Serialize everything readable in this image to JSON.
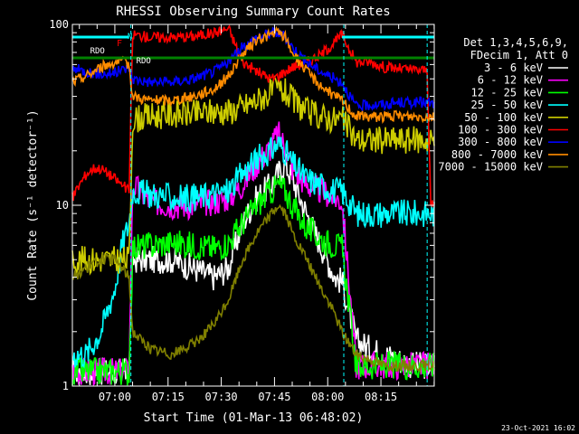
{
  "chart_data": {
    "type": "line",
    "title": "RHESSI Observing Summary Count Rates",
    "xlabel": "Start Time (01-Mar-13 06:48:02)",
    "ylabel": "Count Rate (s⁻¹ detector⁻¹)",
    "yscale": "log",
    "ylim": [
      1,
      100
    ],
    "xlim_minutes_after_start": [
      0,
      102
    ],
    "x_tick_labels": [
      "07:00",
      "07:15",
      "07:30",
      "07:45",
      "08:00",
      "08:15"
    ],
    "x_tick_minutes_after_start": [
      11.97,
      26.97,
      41.97,
      56.97,
      71.97,
      86.97
    ],
    "y_tick_labels": [
      "1",
      "10",
      "100"
    ],
    "y_tick_values": [
      1,
      10,
      100
    ],
    "grid": false,
    "legend_position": "right",
    "legend_header": [
      "Det 1,3,4,5,6,9,",
      "FDecim 1, Att 0"
    ],
    "footer_date": "23-Oct-2021 16:02",
    "flags": {
      "N": {
        "label": "N",
        "color": "#00ffff",
        "segments": [
          [
            0,
            16
          ],
          [
            76,
            102
          ]
        ]
      },
      "F": {
        "label": "F",
        "color": "#ff0000"
      },
      "RDO1": {
        "label": "RDO",
        "color": "#ffffff"
      },
      "RDO2": {
        "label": "RDO",
        "color": "#ffffff"
      },
      "SAA_line": {
        "color": "#008000",
        "segments": [
          [
            0,
            102
          ]
        ]
      }
    },
    "night_intervals_minutes": [
      [
        0,
        16
      ],
      [
        77,
        102
      ]
    ],
    "dashed_markers_minutes": [
      16.5,
      76.5,
      100
    ],
    "series": [
      {
        "name": "3 - 6 keV",
        "color": "#ffffff",
        "x": [
          0,
          4,
          8,
          12,
          14,
          16,
          17,
          22,
          28,
          34,
          40,
          44,
          48,
          52,
          56,
          58,
          60,
          62,
          66,
          70,
          74,
          76,
          80,
          84,
          88,
          92,
          96,
          100,
          102
        ],
        "y": [
          1.2,
          1.2,
          1.2,
          1.2,
          1.2,
          1.2,
          5.0,
          5.0,
          5.0,
          4.5,
          4.0,
          4.5,
          8,
          11,
          13,
          15,
          17,
          14,
          9,
          6,
          4,
          3.8,
          1.8,
          1.6,
          1.5,
          1.4,
          1.3,
          1.3,
          1.3
        ]
      },
      {
        "name": "6 - 12 keV",
        "color": "#ff00ff",
        "x": [
          0,
          4,
          8,
          12,
          14,
          16,
          17,
          22,
          28,
          34,
          40,
          44,
          48,
          52,
          56,
          58,
          60,
          62,
          66,
          70,
          74,
          76,
          80,
          84,
          88,
          92,
          96,
          100,
          102
        ],
        "y": [
          1.2,
          1.2,
          1.2,
          1.2,
          1.2,
          1.2,
          13.0,
          10.5,
          10.0,
          10.0,
          10.5,
          11.0,
          13,
          17,
          21,
          25,
          21,
          16,
          13,
          12,
          11,
          10.5,
          1.3,
          1.3,
          1.3,
          1.3,
          1.3,
          1.3,
          1.3
        ]
      },
      {
        "name": "12 - 25 keV",
        "color": "#00ff00",
        "x": [
          0,
          4,
          8,
          12,
          14,
          16,
          17,
          22,
          28,
          34,
          40,
          44,
          48,
          52,
          56,
          58,
          60,
          62,
          66,
          70,
          74,
          76,
          80,
          84,
          88,
          92,
          96,
          100,
          102
        ],
        "y": [
          1.2,
          1.2,
          1.2,
          1.2,
          1.2,
          1.2,
          5.8,
          6.0,
          6.2,
          6.0,
          5.8,
          6.2,
          8,
          10,
          12,
          13,
          12,
          10,
          7.5,
          6.5,
          6.0,
          5.8,
          1.3,
          1.3,
          1.3,
          1.3,
          1.3,
          1.3,
          1.3
        ]
      },
      {
        "name": "25 - 50 keV",
        "color": "#00ffff",
        "x": [
          0,
          4,
          8,
          12,
          14,
          16,
          17,
          22,
          28,
          34,
          40,
          44,
          48,
          52,
          56,
          58,
          60,
          62,
          66,
          70,
          74,
          76,
          80,
          84,
          88,
          92,
          96,
          100,
          102
        ],
        "y": [
          1.5,
          1.5,
          2.0,
          3.5,
          6.0,
          8.0,
          12.0,
          11.5,
          11.0,
          11.0,
          11.5,
          12.0,
          15,
          18,
          20,
          22,
          20,
          17,
          14,
          13,
          12,
          12,
          9,
          9,
          9,
          9,
          9,
          9,
          9
        ]
      },
      {
        "name": "50 - 100 keV",
        "color": "#cccc00",
        "x": [
          0,
          4,
          8,
          12,
          14,
          16,
          17,
          22,
          28,
          34,
          40,
          44,
          48,
          52,
          56,
          58,
          60,
          62,
          66,
          70,
          74,
          76,
          80,
          84,
          88,
          92,
          96,
          100,
          102
        ],
        "y": [
          5.0,
          5.0,
          5.0,
          5.0,
          5.0,
          5.0,
          30,
          31,
          32,
          32,
          33,
          33,
          35,
          38,
          42,
          44,
          42,
          38,
          33,
          31,
          30,
          30,
          23,
          23,
          23,
          23,
          23,
          23,
          23
        ]
      },
      {
        "name": "100 - 300 keV",
        "color": "#ff0000",
        "x": [
          0,
          2,
          4,
          6,
          8,
          10,
          12,
          14,
          16,
          17,
          22,
          28,
          34,
          40,
          44,
          48,
          52,
          56,
          58,
          60,
          62,
          66,
          70,
          74,
          76,
          80,
          84,
          88,
          92,
          96,
          100,
          101,
          102
        ],
        "y": [
          11,
          13,
          15,
          16,
          16,
          15,
          14,
          13,
          12,
          88,
          85,
          85,
          86,
          90,
          95,
          62,
          55,
          50,
          52,
          55,
          58,
          62,
          68,
          80,
          88,
          62,
          62,
          58,
          57,
          56,
          56,
          10,
          10
        ]
      },
      {
        "name": "300 - 800 keV",
        "color": "#0000ff",
        "x": [
          0,
          4,
          8,
          12,
          14,
          16,
          17,
          22,
          28,
          34,
          40,
          44,
          48,
          52,
          56,
          58,
          60,
          62,
          66,
          70,
          74,
          76,
          80,
          84,
          88,
          92,
          96,
          100,
          102
        ],
        "y": [
          57,
          55,
          53,
          54,
          56,
          58,
          50,
          48,
          48,
          50,
          55,
          62,
          75,
          85,
          90,
          90,
          85,
          75,
          62,
          55,
          50,
          48,
          35,
          36,
          36,
          37,
          37,
          37,
          36
        ]
      },
      {
        "name": "800 - 7000 keV",
        "color": "#ff8c00",
        "x": [
          0,
          4,
          8,
          12,
          14,
          16,
          17,
          22,
          28,
          34,
          40,
          44,
          48,
          52,
          56,
          58,
          60,
          62,
          66,
          70,
          74,
          76,
          80,
          84,
          88,
          92,
          96,
          100,
          102
        ],
        "y": [
          48,
          52,
          58,
          62,
          62,
          60,
          40,
          38,
          38,
          40,
          44,
          52,
          68,
          82,
          88,
          90,
          85,
          70,
          55,
          46,
          40,
          38,
          31,
          31,
          31,
          31,
          31,
          31,
          31
        ]
      },
      {
        "name": "7000 - 15000 keV",
        "color": "#808000",
        "x": [
          0,
          4,
          8,
          12,
          14,
          16,
          17,
          22,
          28,
          34,
          40,
          44,
          48,
          52,
          56,
          58,
          60,
          62,
          66,
          70,
          74,
          76,
          80,
          84,
          88,
          92,
          96,
          100,
          102
        ],
        "y": [
          4.0,
          4.5,
          5.0,
          5.0,
          4.5,
          4.0,
          2.0,
          1.6,
          1.5,
          1.7,
          2.2,
          3.0,
          5,
          7,
          9,
          10,
          9,
          7,
          5,
          3.5,
          2.5,
          2.0,
          1.5,
          1.4,
          1.3,
          1.3,
          1.3,
          1.3,
          1.3
        ]
      }
    ]
  }
}
